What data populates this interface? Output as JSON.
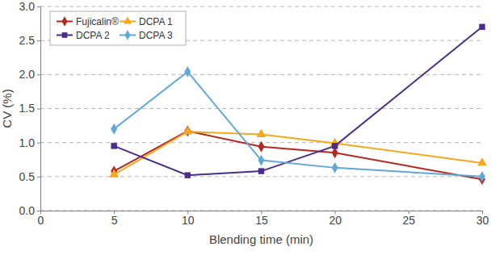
{
  "chart_data": {
    "type": "line",
    "x_label": "Blending time (min)",
    "y_label": "CV (%)",
    "x": [
      5,
      10,
      15,
      20,
      30
    ],
    "xlim": [
      0,
      30
    ],
    "xticks": [
      0,
      5,
      10,
      15,
      20,
      25,
      30
    ],
    "ylim": [
      0,
      3
    ],
    "yticks": [
      {
        "value": 0,
        "label": "0.0"
      },
      0.5,
      {
        "value": 1,
        "label": "1.0"
      },
      1.5,
      {
        "value": 2,
        "label": "2.0"
      },
      2.5,
      {
        "value": 3,
        "label": "3.0"
      }
    ],
    "grid": true,
    "legend": "upper left",
    "series": [
      {
        "name": "Fujicalin®",
        "color": "#b22a1f",
        "marker": "diamond",
        "values": [
          0.58,
          1.17,
          0.94,
          0.85,
          0.46
        ]
      },
      {
        "name": "DCPA 1",
        "color": "#f5a81c",
        "marker": "triangle",
        "values": [
          0.53,
          1.16,
          1.12,
          0.99,
          0.7
        ]
      },
      {
        "name": "DCPA 2",
        "color": "#4a2c8c",
        "marker": "square",
        "values": [
          0.95,
          0.52,
          0.58,
          0.95,
          2.7
        ]
      },
      {
        "name": "DCPA 3",
        "color": "#5fa8d8",
        "marker": "diamond",
        "values": [
          1.2,
          2.04,
          0.74,
          0.63,
          0.5
        ]
      }
    ]
  }
}
